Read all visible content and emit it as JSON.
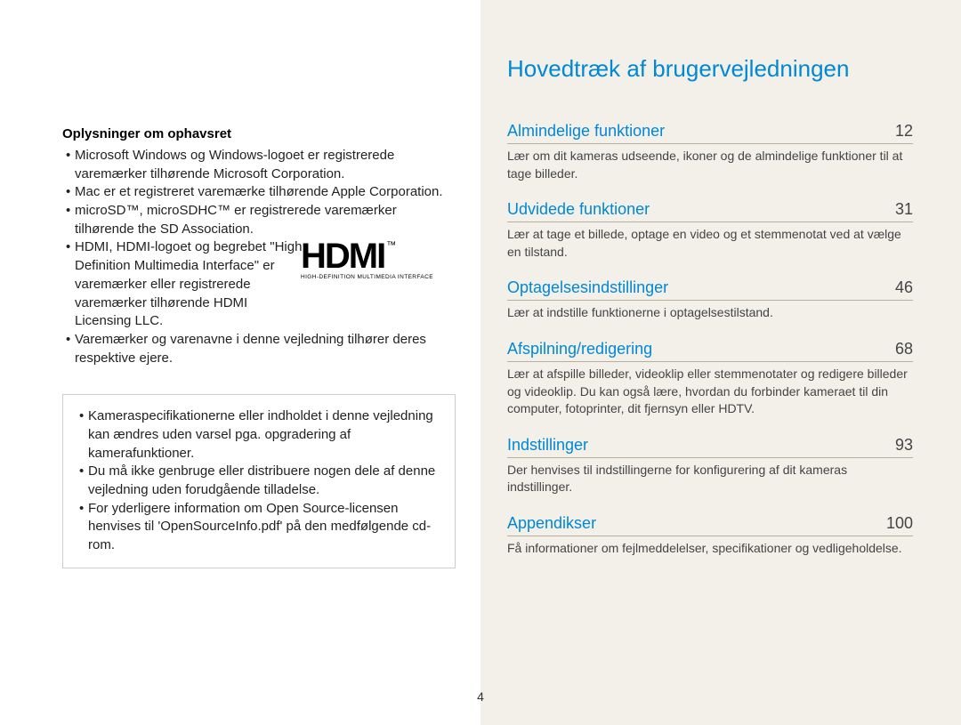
{
  "left": {
    "copyright_heading": "Oplysninger om ophavsret",
    "bullets": [
      "Microsoft Windows og Windows-logoet er registrerede varemærker tilhørende Microsoft Corporation.",
      "Mac er et registreret varemærke tilhørende Apple Corporation.",
      "microSD™, microSDHC™ er registrerede varemærker tilhørende the SD Association."
    ],
    "hdmi_bullet": "HDMI, HDMI-logoet og begrebet \"High Definition Multimedia Interface\" er varemærker eller registrerede varemærker tilhørende HDMI Licensing LLC.",
    "hdmi_logo_main": "HDMI",
    "hdmi_logo_tm": "™",
    "hdmi_logo_sub": "HIGH-DEFINITION MULTIMEDIA INTERFACE",
    "trailing_bullet": "Varemærker og varenavne i denne vejledning tilhører deres respektive ejere.",
    "note_bullets": [
      "Kameraspecifikationerne eller indholdet i denne vejledning kan ændres uden varsel pga. opgradering af kamerafunktioner.",
      "Du må ikke genbruge eller distribuere nogen dele af denne vejledning uden forudgående tilladelse.",
      "For yderligere information om Open Source-licensen henvises til 'OpenSourceInfo.pdf' på den medfølgende cd-rom."
    ]
  },
  "right": {
    "title": "Hovedtræk af brugervejledningen",
    "entries": [
      {
        "label": "Almindelige funktioner",
        "page": "12",
        "desc": "Lær om dit kameras udseende, ikoner og de almindelige funktioner til at tage billeder."
      },
      {
        "label": "Udvidede funktioner",
        "page": "31",
        "desc": "Lær at tage et billede, optage en video og et stemmenotat ved at vælge en tilstand."
      },
      {
        "label": "Optagelsesindstillinger",
        "page": "46",
        "desc": "Lær at indstille funktionerne i optagelsestilstand."
      },
      {
        "label": "Afspilning/redigering",
        "page": "68",
        "desc": "Lær at afspille billeder, videoklip eller stemmenotater og redigere billeder og videoklip. Du kan også lære, hvordan du forbinder kameraet til din computer, fotoprinter, dit fjernsyn eller HDTV."
      },
      {
        "label": "Indstillinger",
        "page": "93",
        "desc": "Der henvises til indstillingerne for konfigurering af dit kameras indstillinger."
      },
      {
        "label": "Appendikser",
        "page": "100",
        "desc": "Få informationer om fejlmeddelelser, specifikationer og vedligeholdelse."
      }
    ]
  },
  "page_number": "4",
  "colors": {
    "link_blue": "#0088d4",
    "right_bg": "#f2f0e9",
    "toc_rule": "#b4afa0"
  }
}
